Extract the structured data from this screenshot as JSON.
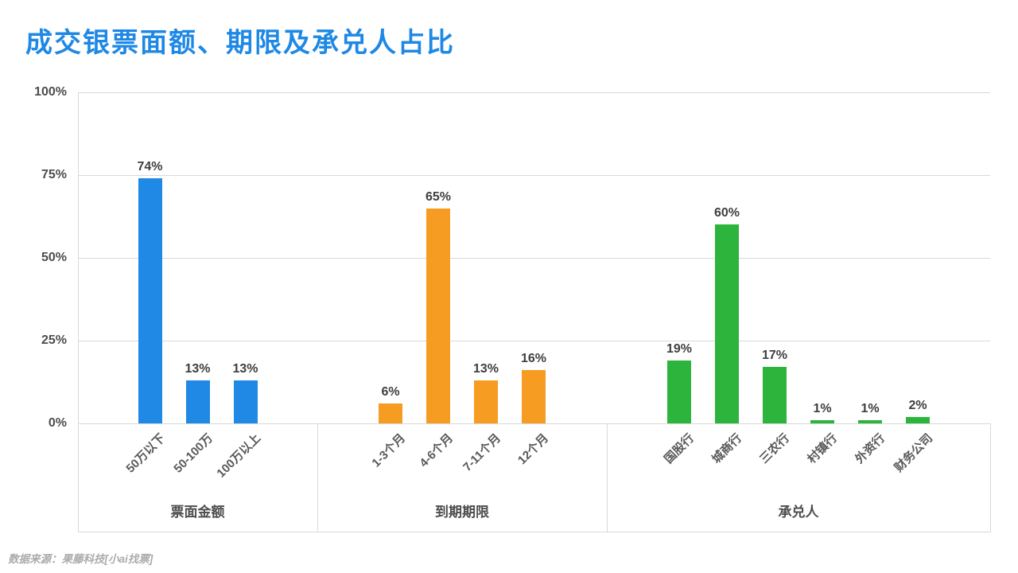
{
  "title": "成交银票面额、期限及承兑人占比",
  "footer": "数据来源：果藤科技[小ai找票]",
  "colors": {
    "title": "#1E88E5",
    "grid": "#D9D9D9",
    "axis_text": "#4D4D4D",
    "value_text": "#3F3F3F",
    "category_text": "#595959",
    "footer_text": "#ABABAB",
    "bar_blue": "#2089E5",
    "bar_orange": "#F69C23",
    "bar_green": "#2CB43C"
  },
  "chart_data": {
    "type": "bar",
    "title": "成交银票面额、期限及承兑人占比",
    "xlabel": "",
    "ylabel": "",
    "ylim": [
      0,
      100
    ],
    "grid": true,
    "legend": false,
    "ytick_labels": [
      "0%",
      "25%",
      "50%",
      "75%",
      "100%"
    ],
    "groups": [
      {
        "label": "票面金额",
        "color": "#2089E5",
        "categories": [
          "50万以下",
          "50-100万",
          "100万以上"
        ],
        "values": [
          74,
          13,
          13
        ],
        "value_labels": [
          "74%",
          "13%",
          "13%"
        ]
      },
      {
        "label": "到期期限",
        "color": "#F69C23",
        "categories": [
          "1-3个月",
          "4-6个月",
          "7-11个月",
          "12个月"
        ],
        "values": [
          6,
          65,
          13,
          16
        ],
        "value_labels": [
          "6%",
          "65%",
          "13%",
          "16%"
        ]
      },
      {
        "label": "承兑人",
        "color": "#2CB43C",
        "categories": [
          "国股行",
          "城商行",
          "三农行",
          "村镇行",
          "外资行",
          "财务公司"
        ],
        "values": [
          19,
          60,
          17,
          1,
          1,
          2
        ],
        "value_labels": [
          "19%",
          "60%",
          "17%",
          "1%",
          "1%",
          "2%"
        ]
      }
    ]
  }
}
